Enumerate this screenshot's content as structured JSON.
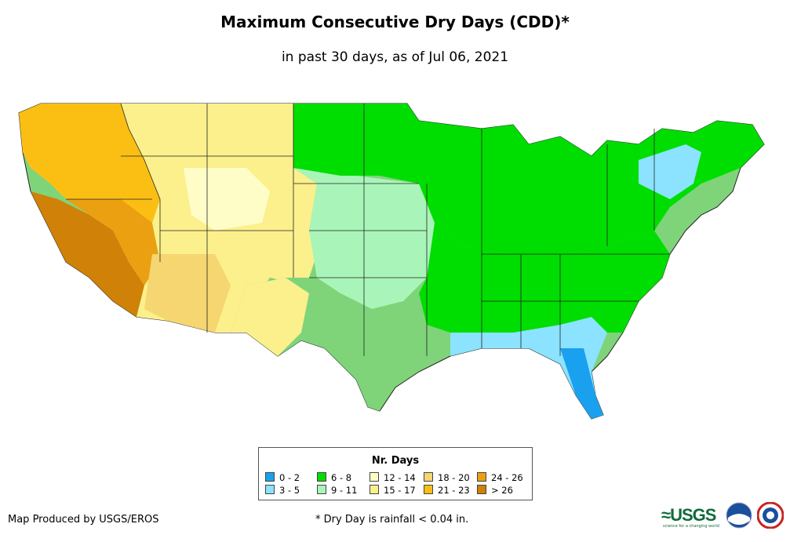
{
  "title": "Maximum Consecutive Dry Days (CDD)*",
  "subtitle": "in past 30 days, as of Jul 06, 2021",
  "legend": {
    "title": "Nr. Days",
    "items": [
      {
        "label": "0 - 2",
        "color": "#19a1ef"
      },
      {
        "label": "3 - 5",
        "color": "#8be3ff"
      },
      {
        "label": "6 - 8",
        "color": "#00dd00"
      },
      {
        "label": "9 - 11",
        "color": "#a9f5b9"
      },
      {
        "label": "12 - 14",
        "color": "#fffdc7"
      },
      {
        "label": "15 - 17",
        "color": "#fbf08c"
      },
      {
        "label": "18 - 20",
        "color": "#f5d670"
      },
      {
        "label": "21 - 23",
        "color": "#fbbf14"
      },
      {
        "label": "24 - 26",
        "color": "#eba012"
      },
      {
        "label": "> 26",
        "color": "#cf8108"
      }
    ]
  },
  "credit": "Map Produced by USGS/EROS",
  "footnote": "* Dry Day is rainfall < 0.04 in.",
  "logos": {
    "usgs": "≈USGS",
    "usgs_tagline": "science for a changing world"
  }
}
